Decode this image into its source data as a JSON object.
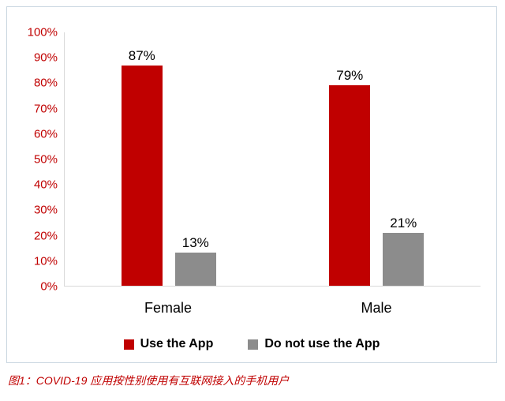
{
  "chart_data": {
    "type": "bar",
    "categories": [
      "Female",
      "Male"
    ],
    "series": [
      {
        "name": "Use the App",
        "color": "#c00000",
        "values": [
          87,
          79
        ]
      },
      {
        "name": "Do not use the App",
        "color": "#8c8c8c",
        "values": [
          13,
          21
        ]
      }
    ],
    "title": "",
    "xlabel": "",
    "ylabel": "",
    "ylim": [
      0,
      100
    ],
    "ytick_step": 10,
    "ytick_suffix": "%",
    "bar_label_suffix": "%",
    "grid": false,
    "legend_position": "bottom"
  },
  "caption": "图1：COVID-19 应用按性别使用有互联网接入的手机用户",
  "colors": {
    "axis_label": "#c00000",
    "axis_line": "#d9d9d9",
    "frame_border": "#c9d6e0",
    "bar_label": "#000000",
    "caption": "#c00000"
  }
}
